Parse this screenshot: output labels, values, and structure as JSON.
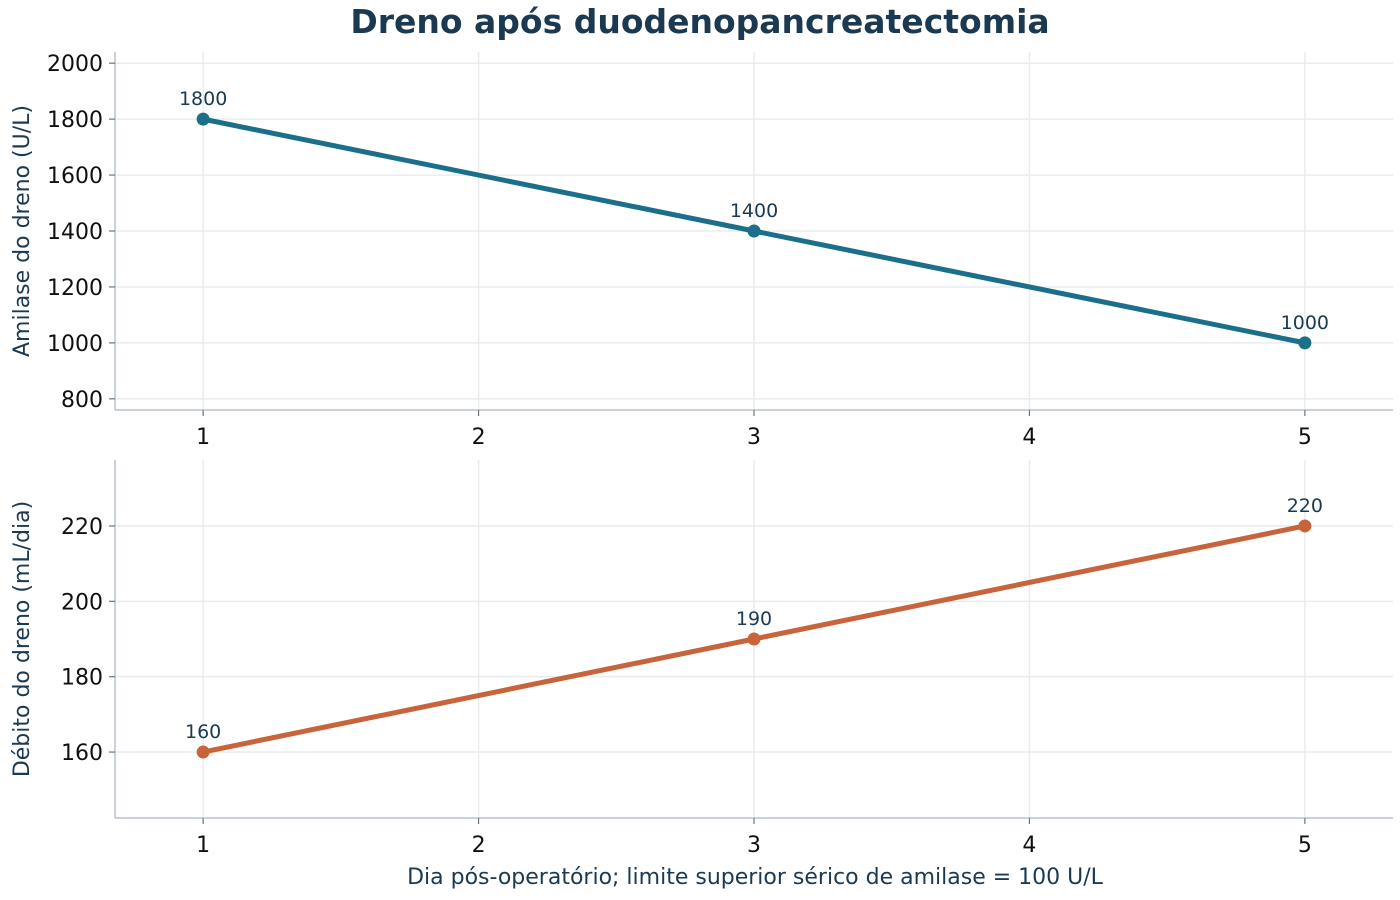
{
  "title": "Dreno após duodenopancreatectomia",
  "xlabel": "Dia pós-operatório; limite superior sérico de amilase = 100 U/L",
  "chart_data": [
    {
      "type": "line",
      "x": [
        1,
        3,
        5
      ],
      "y": [
        1800,
        1400,
        1000
      ],
      "data_labels": [
        "1800",
        "1400",
        "1000"
      ],
      "xlim": [
        0.68,
        5.32
      ],
      "ylim": [
        760,
        2040
      ],
      "xticks": [
        1,
        2,
        3,
        4,
        5
      ],
      "xtick_labels": [
        "1",
        "2",
        "3",
        "4",
        "5"
      ],
      "yticks": [
        800,
        1000,
        1200,
        1400,
        1600,
        1800,
        2000
      ],
      "ytick_labels": [
        "800",
        "1000",
        "1200",
        "1400",
        "1600",
        "1800",
        "2000"
      ],
      "ylabel": "Amilase do dreno (U/L)",
      "color": "#1b6f8a",
      "grid": true
    },
    {
      "type": "line",
      "x": [
        1,
        3,
        5
      ],
      "y": [
        160,
        190,
        220
      ],
      "data_labels": [
        "160",
        "190",
        "220"
      ],
      "xlim": [
        0.68,
        5.32
      ],
      "ylim": [
        142.5,
        237.5
      ],
      "xticks": [
        1,
        2,
        3,
        4,
        5
      ],
      "xtick_labels": [
        "1",
        "2",
        "3",
        "4",
        "5"
      ],
      "yticks": [
        160,
        180,
        200,
        220
      ],
      "ytick_labels": [
        "160",
        "180",
        "200",
        "220"
      ],
      "ylabel": "Débito do dreno (mL/dia)",
      "color": "#c8643c",
      "grid": true
    }
  ]
}
